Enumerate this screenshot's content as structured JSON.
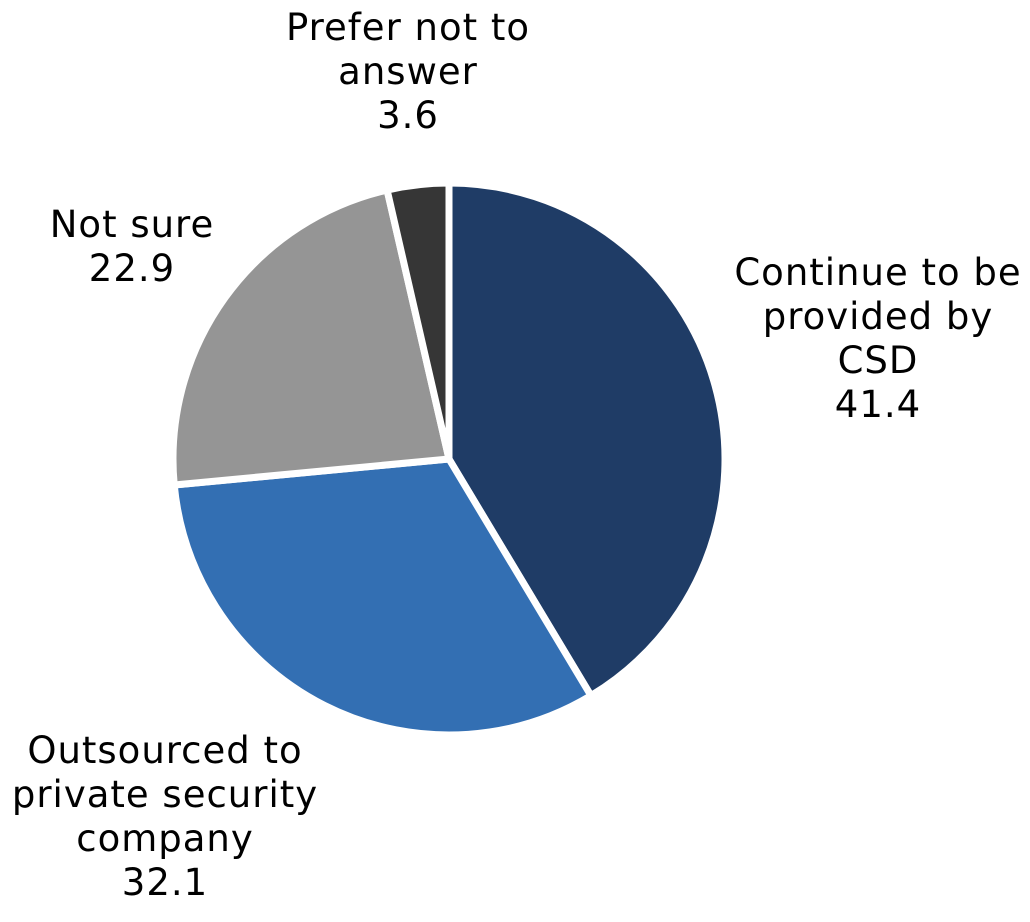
{
  "chart_data": {
    "type": "pie",
    "slices": [
      {
        "label_lines": [
          "Continue to be",
          "provided by",
          "CSD"
        ],
        "value": 41.4,
        "value_label": "41.4",
        "color": "#1f3c66"
      },
      {
        "label_lines": [
          "Outsourced to",
          "private security",
          "company"
        ],
        "value": 32.1,
        "value_label": "32.1",
        "color": "#336fb3"
      },
      {
        "label_lines": [
          "Not sure"
        ],
        "value": 22.9,
        "value_label": "22.9",
        "color": "#959595"
      },
      {
        "label_lines": [
          "Prefer not to",
          "answer"
        ],
        "value": 3.6,
        "value_label": "3.6",
        "color": "#363636"
      }
    ],
    "start_angle_degrees": 0,
    "direction": "clockwise",
    "legend": "none",
    "data_labels": "outside"
  }
}
